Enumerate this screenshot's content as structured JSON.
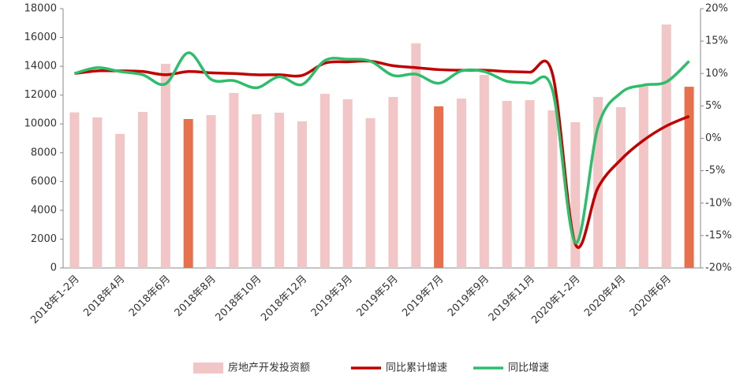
{
  "chart_data": {
    "type": "bar-line",
    "categories": [
      "2018年1-2月",
      null,
      "2018年4月",
      null,
      "2018年6月",
      null,
      "2018年8月",
      null,
      "2018年10月",
      null,
      "2018年12月",
      null,
      "2019年3月",
      null,
      "2019年5月",
      null,
      "2019年7月",
      null,
      "2019年9月",
      null,
      "2019年11月",
      null,
      "2020年1-2月",
      null,
      "2020年4月",
      null,
      "2020年6月",
      null
    ],
    "series": [
      {
        "name": "房地产开发投资额",
        "type": "bar",
        "color": "#f2c6c6",
        "colors": [
          "#f2c6c6",
          "#f2c6c6",
          "#f2c6c6",
          "#f2c6c6",
          "#f2c6c6",
          "#e8704c",
          "#f2c6c6",
          "#f2c6c6",
          "#f2c6c6",
          "#f2c6c6",
          "#f2c6c6",
          "#f2c6c6",
          "#f2c6c6",
          "#f2c6c6",
          "#f2c6c6",
          "#f2c6c6",
          "#e8704c",
          "#f2c6c6",
          "#f2c6c6",
          "#f2c6c6",
          "#f2c6c6",
          "#f2c6c6",
          "#f2c6c6",
          "#f2c6c6",
          "#f2c6c6",
          "#f2c6c6",
          "#f2c6c6",
          "#e8704c"
        ],
        "values": [
          10800,
          10450,
          9300,
          10830,
          14170,
          10340,
          10610,
          12150,
          10670,
          10780,
          10180,
          12090,
          11710,
          10400,
          11870,
          15590,
          11220,
          11760,
          13400,
          11600,
          11650,
          10940,
          10120,
          11870,
          11160,
          12750,
          16900,
          12580
        ]
      },
      {
        "name": "同比累计增速",
        "type": "line",
        "axis": "y2",
        "color": "#c00000",
        "values": [
          10.0,
          10.4,
          10.4,
          10.3,
          9.8,
          10.3,
          10.1,
          10.0,
          9.8,
          9.8,
          9.7,
          11.6,
          11.8,
          11.9,
          11.2,
          10.9,
          10.6,
          10.5,
          10.5,
          10.3,
          10.2,
          9.9,
          -16.3,
          -7.6,
          -3.3,
          -0.3,
          1.9,
          3.4
        ]
      },
      {
        "name": "同比增速",
        "type": "line",
        "axis": "y2",
        "color": "#2ebd6b",
        "values": [
          10.0,
          10.9,
          10.3,
          9.8,
          8.4,
          13.2,
          9.1,
          8.9,
          7.8,
          9.5,
          8.3,
          12.0,
          12.2,
          11.9,
          9.7,
          9.9,
          8.5,
          10.4,
          10.3,
          8.8,
          8.5,
          7.4,
          -16.1,
          1.8,
          7.0,
          8.2,
          8.7,
          11.9
        ]
      }
    ],
    "ylim": [
      0,
      18000
    ],
    "yticks": [
      0,
      2000,
      4000,
      6000,
      8000,
      10000,
      12000,
      14000,
      16000,
      18000
    ],
    "y2lim": [
      -20,
      20
    ],
    "y2ticks": [
      {
        "value": -20,
        "label": "-20%"
      },
      {
        "value": -15,
        "label": "-15%"
      },
      {
        "value": -10,
        "label": "-10%"
      },
      {
        "value": -5,
        "label": "-5%"
      },
      {
        "value": 0,
        "label": "0%"
      },
      {
        "value": 5,
        "label": "5%"
      },
      {
        "value": 10,
        "label": "10%"
      },
      {
        "value": 15,
        "label": "15%"
      },
      {
        "value": 20,
        "label": "20%"
      }
    ],
    "legend": "bottom"
  }
}
